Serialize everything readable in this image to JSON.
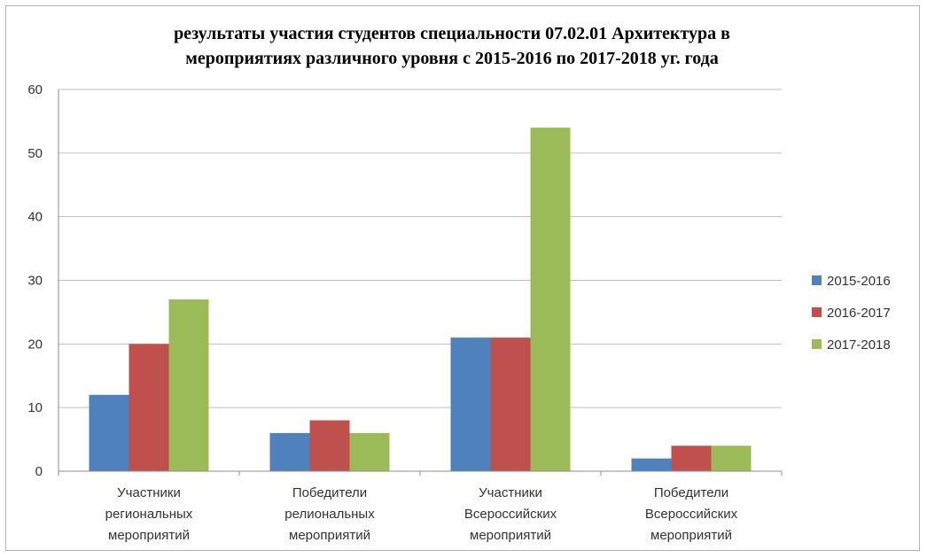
{
  "chart_data": {
    "type": "bar",
    "title": "результаты участия студентов специальности 07.02.01 Архитектура в мероприятиях различного уровня с 2015-2016 по 2017-2018 уг. года",
    "title_lines": [
      "результаты участия студентов специальности 07.02.01 Архитектура в",
      "мероприятиях различного уровня с 2015-2016 по 2017-2018 уг. года"
    ],
    "categories": [
      [
        "Участники",
        "региональных",
        "мероприятий"
      ],
      [
        "Победители",
        "релиональных",
        "мероприятий"
      ],
      [
        "Участники",
        "Всероссийских",
        "мероприятий"
      ],
      [
        "Победители",
        "Всероссийских",
        "мероприятий"
      ]
    ],
    "series": [
      {
        "name": "2015-2016",
        "color": "#4f81bd",
        "values": [
          12,
          6,
          21,
          2
        ]
      },
      {
        "name": "2016-2017",
        "color": "#c0504d",
        "values": [
          20,
          8,
          21,
          4
        ]
      },
      {
        "name": "2017-2018",
        "color": "#9bbb59",
        "values": [
          27,
          6,
          54,
          4
        ]
      }
    ],
    "ylim": [
      0,
      60
    ],
    "yticks": [
      0,
      10,
      20,
      30,
      40,
      50,
      60
    ],
    "grid": true,
    "legend": "right",
    "xlabel": "",
    "ylabel": ""
  }
}
